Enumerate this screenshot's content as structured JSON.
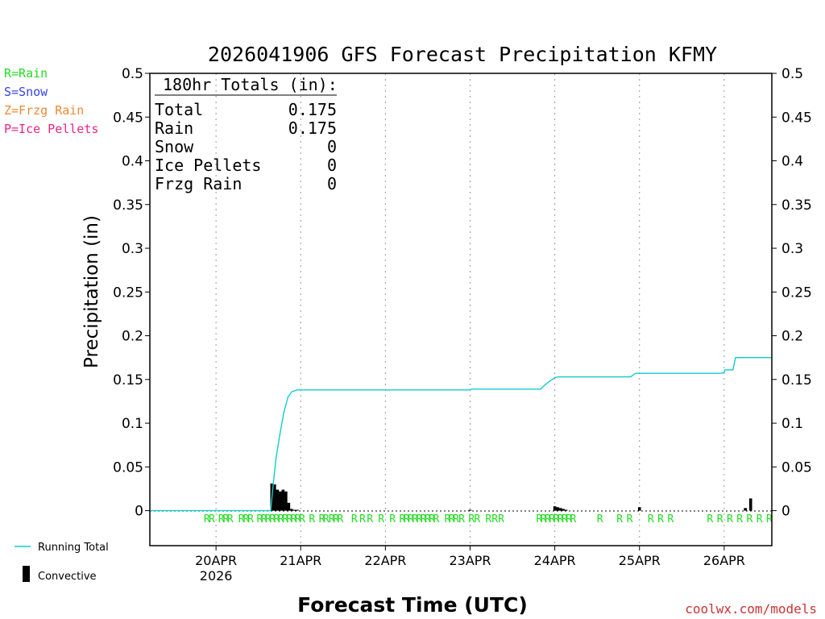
{
  "chart_data": {
    "type": "bar",
    "title": "2026041906 GFS Forecast Precipitation KFMY",
    "xlabel": "Forecast Time (UTC)",
    "ylabel": "Precipitation (in)",
    "ylim": [
      -0.04,
      0.5
    ],
    "yticks": [
      "0.5",
      "0.45",
      "0.4",
      "0.35",
      "0.3",
      "0.25",
      "0.2",
      "0.15",
      "0.1",
      "0.05",
      "0"
    ],
    "ytick_values": [
      0.5,
      0.45,
      0.4,
      0.35,
      0.3,
      0.25,
      0.2,
      0.15,
      0.1,
      0.05,
      0
    ],
    "x_range_hours": [
      -18.75,
      157.5
    ],
    "x_ticks": [
      {
        "label": "20APR",
        "sub": "2026",
        "hour": 0
      },
      {
        "label": "21APR",
        "sub": "",
        "hour": 24
      },
      {
        "label": "22APR",
        "sub": "",
        "hour": 48
      },
      {
        "label": "23APR",
        "sub": "",
        "hour": 72
      },
      {
        "label": "24APR",
        "sub": "",
        "hour": 96
      },
      {
        "label": "25APR",
        "sub": "",
        "hour": 120
      },
      {
        "label": "26APR",
        "sub": "",
        "hour": 144
      }
    ],
    "legend_types": [
      {
        "text": "R=Rain",
        "color": "#22dd22"
      },
      {
        "text": "S=Snow",
        "color": "#3344ee"
      },
      {
        "text": "Z=Frzg Rain",
        "color": "#ee8833"
      },
      {
        "text": "P=Ice Pellets",
        "color": "#ee2288"
      }
    ],
    "legend_lines": [
      {
        "text": "Running Total",
        "color": "#11cccc"
      },
      {
        "text": "Convective",
        "color": "#000000"
      }
    ],
    "totals": {
      "heading": "180hr Totals (in):",
      "rows": [
        {
          "label": "Total",
          "value": "0.175"
        },
        {
          "label": "Rain",
          "value": "0.175"
        },
        {
          "label": "Snow",
          "value": "0"
        },
        {
          "label": "Ice Pellets",
          "value": "0"
        },
        {
          "label": "Frzg Rain",
          "value": "0"
        }
      ]
    },
    "convective_bars": [
      {
        "hour": 15.8,
        "value": 0.031
      },
      {
        "hour": 16.6,
        "value": 0.03
      },
      {
        "hour": 17.4,
        "value": 0.024
      },
      {
        "hour": 18.2,
        "value": 0.022
      },
      {
        "hour": 19.0,
        "value": 0.024
      },
      {
        "hour": 19.8,
        "value": 0.022
      },
      {
        "hour": 20.6,
        "value": 0.009
      },
      {
        "hour": 21.4,
        "value": 0.002
      },
      {
        "hour": 22.2,
        "value": 0.001
      },
      {
        "hour": 23.0,
        "value": 0.001
      },
      {
        "hour": 72.0,
        "value": 0.001
      },
      {
        "hour": 96.0,
        "value": 0.005
      },
      {
        "hour": 96.8,
        "value": 0.004
      },
      {
        "hour": 97.6,
        "value": 0.003
      },
      {
        "hour": 98.4,
        "value": 0.002
      },
      {
        "hour": 99.2,
        "value": 0.001
      },
      {
        "hour": 120.0,
        "value": 0.004
      },
      {
        "hour": 150.0,
        "value": 0.003
      },
      {
        "hour": 151.5,
        "value": 0.014
      }
    ],
    "running_total": [
      {
        "hour": -18.75,
        "value": 0
      },
      {
        "hour": 15.5,
        "value": 0
      },
      {
        "hour": 16.2,
        "value": 0.03
      },
      {
        "hour": 17.0,
        "value": 0.06
      },
      {
        "hour": 18.0,
        "value": 0.085
      },
      {
        "hour": 19.2,
        "value": 0.112
      },
      {
        "hour": 20.4,
        "value": 0.13
      },
      {
        "hour": 21.5,
        "value": 0.136
      },
      {
        "hour": 23.0,
        "value": 0.138
      },
      {
        "hour": 72.0,
        "value": 0.138
      },
      {
        "hour": 72.5,
        "value": 0.139
      },
      {
        "hour": 92.0,
        "value": 0.139
      },
      {
        "hour": 93.0,
        "value": 0.143
      },
      {
        "hour": 94.5,
        "value": 0.148
      },
      {
        "hour": 96.0,
        "value": 0.152
      },
      {
        "hour": 97.0,
        "value": 0.153
      },
      {
        "hour": 117.5,
        "value": 0.153
      },
      {
        "hour": 118.5,
        "value": 0.156
      },
      {
        "hour": 119.0,
        "value": 0.157
      },
      {
        "hour": 143.0,
        "value": 0.157
      },
      {
        "hour": 144.0,
        "value": 0.158
      },
      {
        "hour": 144.2,
        "value": 0.161
      },
      {
        "hour": 146.5,
        "value": 0.161
      },
      {
        "hour": 147.2,
        "value": 0.175
      },
      {
        "hour": 157.5,
        "value": 0.175
      }
    ],
    "precip_type_marks": [
      {
        "hour": -2.6,
        "text": "R"
      },
      {
        "hour": -1.2,
        "text": "R"
      },
      {
        "hour": 1.5,
        "text": "R"
      },
      {
        "hour": 2.8,
        "text": "R"
      },
      {
        "hour": 4.0,
        "text": "R"
      },
      {
        "hour": 7.2,
        "text": "R"
      },
      {
        "hour": 8.5,
        "text": "R"
      },
      {
        "hour": 9.8,
        "text": "R"
      },
      {
        "hour": 12.4,
        "text": "R"
      },
      {
        "hour": 13.6,
        "text": "R"
      },
      {
        "hour": 14.8,
        "text": "R"
      },
      {
        "hour": 16.0,
        "text": "R"
      },
      {
        "hour": 17.2,
        "text": "R"
      },
      {
        "hour": 18.4,
        "text": "R"
      },
      {
        "hour": 19.6,
        "text": "R"
      },
      {
        "hour": 20.8,
        "text": "R"
      },
      {
        "hour": 22.0,
        "text": "R"
      },
      {
        "hour": 23.2,
        "text": "R"
      },
      {
        "hour": 24.4,
        "text": "R"
      },
      {
        "hour": 27.2,
        "text": "R"
      },
      {
        "hour": 30.0,
        "text": "R"
      },
      {
        "hour": 31.2,
        "text": "R"
      },
      {
        "hour": 32.8,
        "text": "R"
      },
      {
        "hour": 34.0,
        "text": "R"
      },
      {
        "hour": 35.2,
        "text": "R"
      },
      {
        "hour": 39.2,
        "text": "R"
      },
      {
        "hour": 41.5,
        "text": "R"
      },
      {
        "hour": 43.6,
        "text": "R"
      },
      {
        "hour": 46.8,
        "text": "R"
      },
      {
        "hour": 50.0,
        "text": "R"
      },
      {
        "hour": 52.8,
        "text": "R"
      },
      {
        "hour": 54.0,
        "text": "R"
      },
      {
        "hour": 55.2,
        "text": "R"
      },
      {
        "hour": 56.4,
        "text": "R"
      },
      {
        "hour": 57.6,
        "text": "R"
      },
      {
        "hour": 58.8,
        "text": "R"
      },
      {
        "hour": 60.0,
        "text": "R"
      },
      {
        "hour": 61.2,
        "text": "R"
      },
      {
        "hour": 62.4,
        "text": "R"
      },
      {
        "hour": 65.6,
        "text": "R"
      },
      {
        "hour": 66.8,
        "text": "R"
      },
      {
        "hour": 68.0,
        "text": "R"
      },
      {
        "hour": 69.6,
        "text": "R"
      },
      {
        "hour": 72.4,
        "text": "R"
      },
      {
        "hour": 74.0,
        "text": "R"
      },
      {
        "hour": 77.2,
        "text": "R"
      },
      {
        "hour": 79.0,
        "text": "R"
      },
      {
        "hour": 80.8,
        "text": "R"
      },
      {
        "hour": 91.6,
        "text": "R"
      },
      {
        "hour": 92.8,
        "text": "R"
      },
      {
        "hour": 94.0,
        "text": "R"
      },
      {
        "hour": 95.2,
        "text": "R"
      },
      {
        "hour": 96.4,
        "text": "R"
      },
      {
        "hour": 97.6,
        "text": "R"
      },
      {
        "hour": 98.8,
        "text": "R"
      },
      {
        "hour": 100.0,
        "text": "R"
      },
      {
        "hour": 101.2,
        "text": "R"
      },
      {
        "hour": 108.8,
        "text": "R"
      },
      {
        "hour": 114.4,
        "text": "R"
      },
      {
        "hour": 117.2,
        "text": "R"
      },
      {
        "hour": 123.2,
        "text": "R"
      },
      {
        "hour": 126.0,
        "text": "R"
      },
      {
        "hour": 128.8,
        "text": "R"
      },
      {
        "hour": 140.0,
        "text": "R"
      },
      {
        "hour": 142.8,
        "text": "R"
      },
      {
        "hour": 145.6,
        "text": "R"
      },
      {
        "hour": 148.4,
        "text": "R"
      },
      {
        "hour": 151.2,
        "text": "R"
      },
      {
        "hour": 154.0,
        "text": "R"
      },
      {
        "hour": 156.8,
        "text": "R"
      }
    ]
  },
  "footer": {
    "credit": "coolwx.com/models"
  },
  "colors": {
    "rain": "#22dd22",
    "running_total": "#11cccc",
    "credit": "#cc3333",
    "convective": "#000000"
  }
}
